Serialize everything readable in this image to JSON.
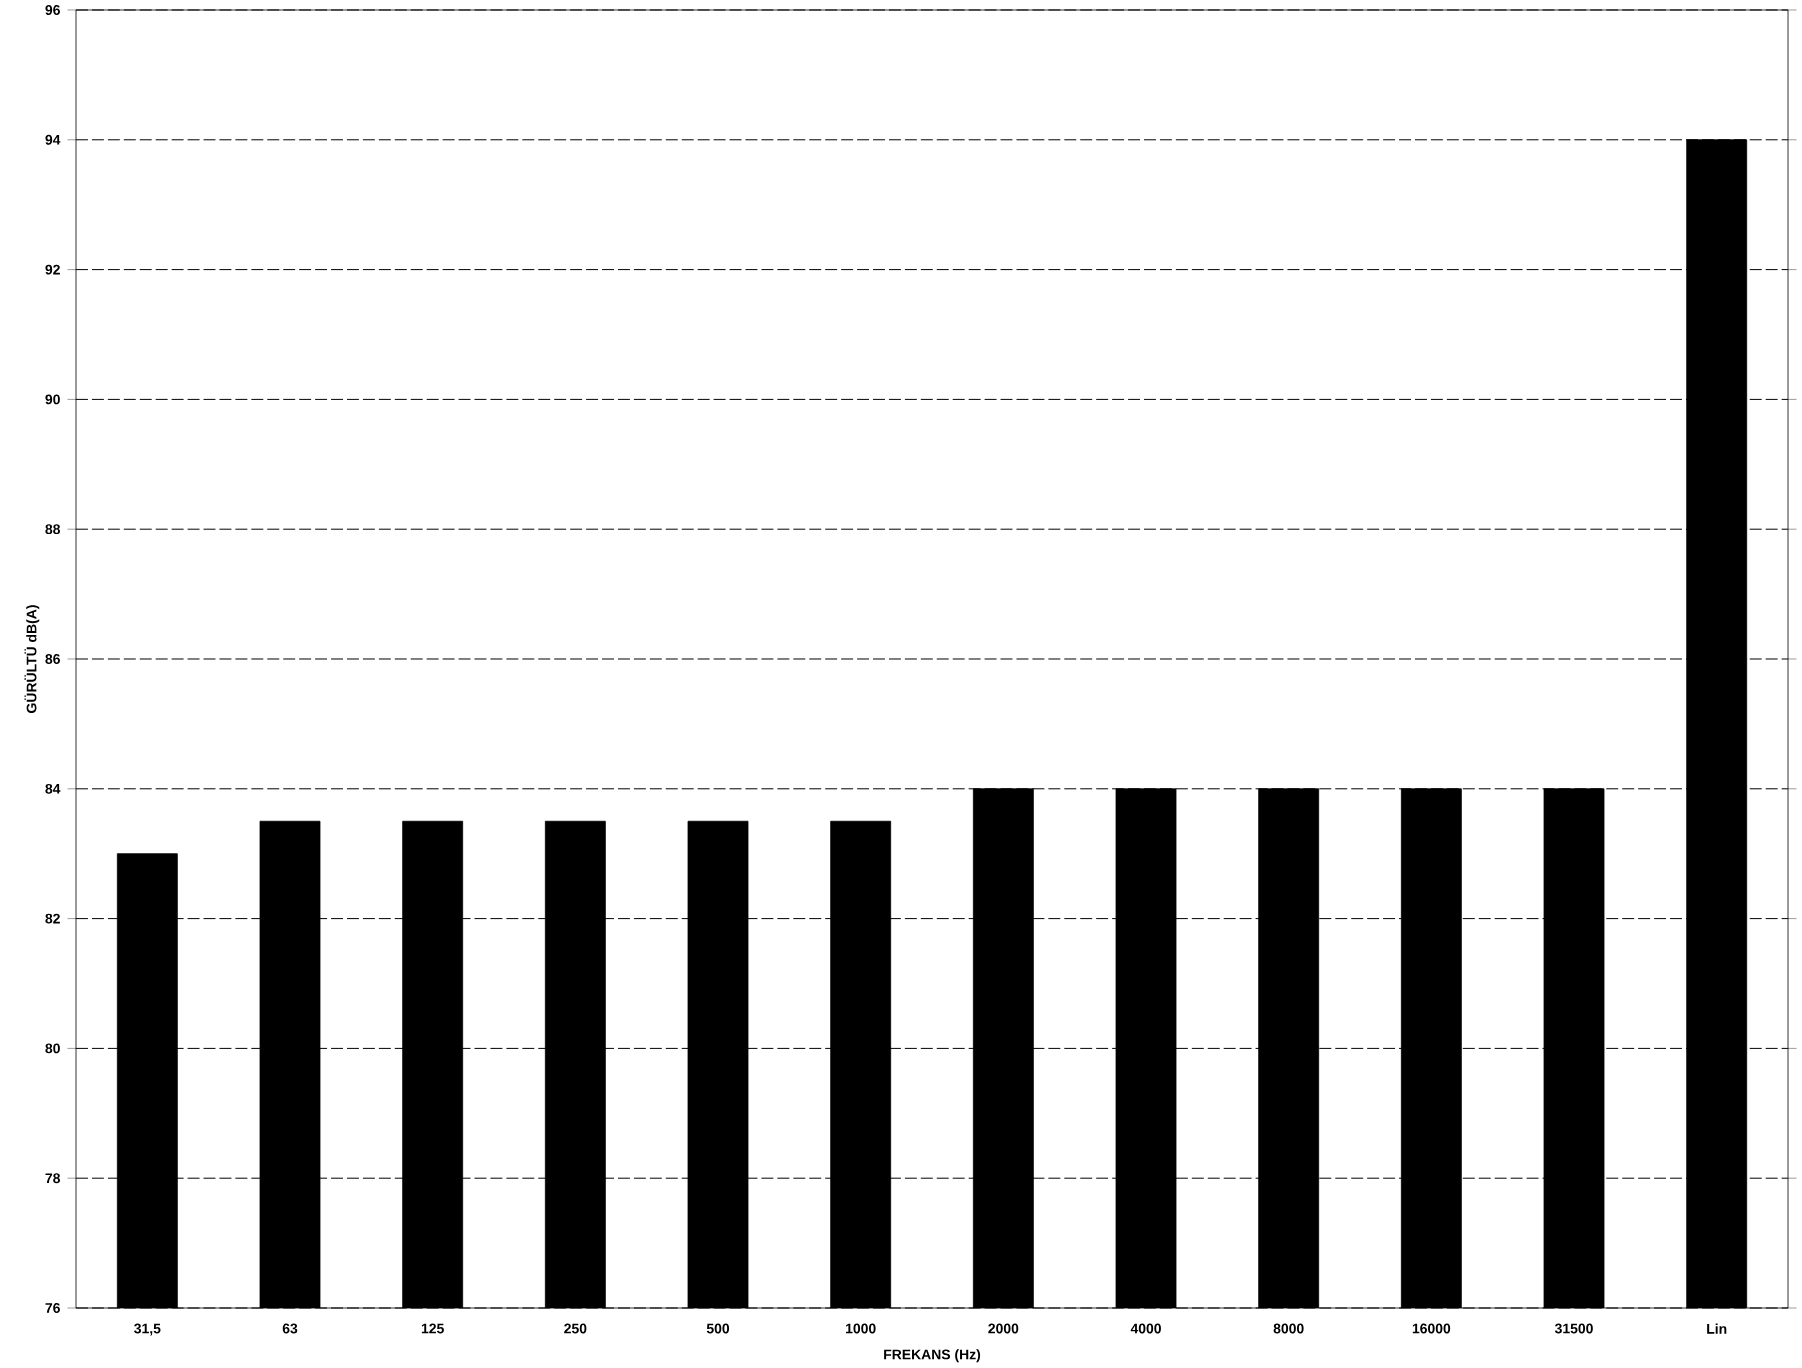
{
  "chart_data": {
    "type": "bar",
    "xlabel": "FREKANS (Hz)",
    "ylabel": "GÜRÜLTÜ dB(A)",
    "categories": [
      "31,5",
      "63",
      "125",
      "250",
      "500",
      "1000",
      "2000",
      "4000",
      "8000",
      "16000",
      "31500",
      "Lin"
    ],
    "values": [
      83,
      83.5,
      83.5,
      83.5,
      83.5,
      83.5,
      84,
      84,
      84,
      84,
      84,
      94
    ],
    "color": "#000000",
    "ylim": [
      76,
      96
    ],
    "yticks": [
      76,
      78,
      80,
      82,
      84,
      86,
      88,
      90,
      92,
      94,
      96
    ],
    "grid": "y"
  }
}
